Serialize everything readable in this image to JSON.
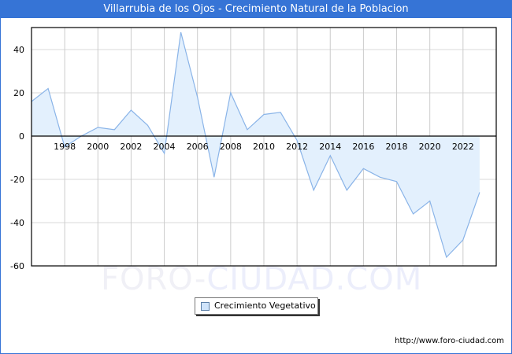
{
  "header": {
    "title": "Villarrubia de los Ojos - Crecimiento Natural de la Poblacion"
  },
  "legend": {
    "label": "Crecimiento Vegetativo",
    "swatch_color": "#cfe4fb"
  },
  "watermark": {
    "part1": "FORO-",
    "part2": "CIUDAD.COM"
  },
  "footer": {
    "source_url": "http://www.foro-ciudad.com"
  },
  "colors": {
    "title_bar": "#3674d6",
    "line": "#8ab4e8",
    "fill": "#e3f0fd",
    "grid": "#d8d8d8"
  },
  "chart_data": {
    "type": "area",
    "title": "Villarrubia de los Ojos - Crecimiento Natural de la Poblacion",
    "xlabel": "",
    "ylabel": "",
    "x": [
      1996,
      1997,
      1998,
      1999,
      2000,
      2001,
      2002,
      2003,
      2004,
      2005,
      2006,
      2007,
      2008,
      2009,
      2010,
      2011,
      2012,
      2013,
      2014,
      2015,
      2016,
      2017,
      2018,
      2019,
      2020,
      2021,
      2022,
      2023
    ],
    "series": [
      {
        "name": "Crecimiento Vegetativo",
        "values": [
          16,
          22,
          -5,
          0,
          4,
          3,
          12,
          5,
          -8,
          48,
          18,
          -19,
          20,
          3,
          10,
          11,
          -2,
          -25,
          -9,
          -25,
          -15,
          -19,
          -21,
          -36,
          -30,
          -56,
          -48,
          -26
        ]
      }
    ],
    "x_tick_labels": [
      "1998",
      "2000",
      "2002",
      "2004",
      "2006",
      "2008",
      "2010",
      "2012",
      "2014",
      "2016",
      "2018",
      "2020",
      "2022"
    ],
    "y_tick_labels": [
      "40",
      "20",
      "0",
      "-20",
      "-40",
      "-60"
    ],
    "ylim": [
      -60,
      50
    ],
    "xlim": [
      1996,
      2024
    ],
    "grid": true,
    "legend_position": "bottom-center"
  }
}
